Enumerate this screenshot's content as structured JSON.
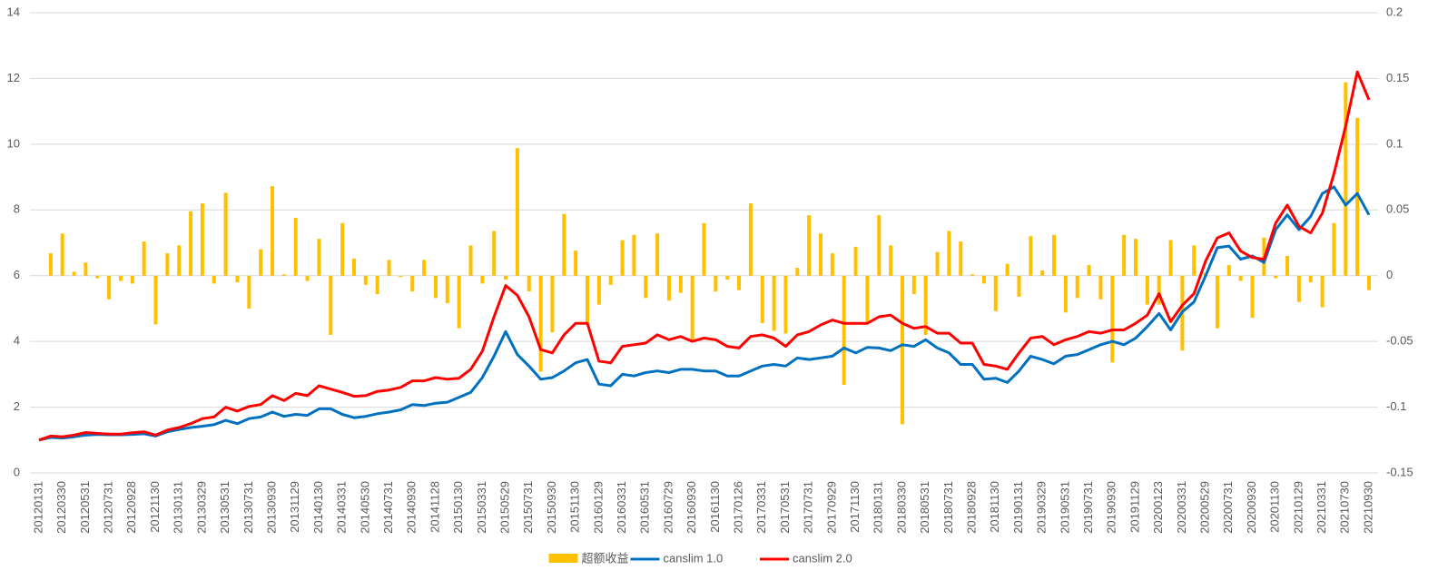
{
  "chart_data": {
    "type": "bar-line",
    "categories": [
      "20120131",
      null,
      "20120330",
      null,
      "20120531",
      null,
      "20120731",
      null,
      "20120928",
      null,
      "20121130",
      null,
      "20130131",
      null,
      "20130329",
      null,
      "20130531",
      null,
      "20130731",
      null,
      "20130930",
      null,
      "20131129",
      null,
      "20140130",
      null,
      "20140331",
      null,
      "20140530",
      null,
      "20140731",
      null,
      "20140930",
      null,
      "20141128",
      null,
      "20150130",
      null,
      "20150331",
      null,
      "20150529",
      null,
      "20150731",
      null,
      "20150930",
      null,
      "20151130",
      null,
      "20160129",
      null,
      "20160331",
      null,
      "20160531",
      null,
      "20160729",
      null,
      "20160930",
      null,
      "20161130",
      null,
      "20170126",
      null,
      "20170331",
      null,
      "20170531",
      null,
      "20170731",
      null,
      "20170929",
      null,
      "20171130",
      null,
      "20180131",
      null,
      "20180330",
      null,
      "20180531",
      null,
      "20180731",
      null,
      "20180928",
      null,
      "20181130",
      null,
      "20190131",
      null,
      "20190329",
      null,
      "20190531",
      null,
      "20190731",
      null,
      "20190930",
      null,
      "20191129",
      null,
      "20200123",
      null,
      "20200331",
      null,
      "20200529",
      null,
      "20200731",
      null,
      "20200930",
      null,
      "20201130",
      null,
      "20210129",
      null,
      "20210331",
      null,
      "20210730",
      null,
      "20210930"
    ],
    "series": [
      {
        "name": "超额收益",
        "kind": "bar",
        "axis": "y2",
        "color": "#ffc000",
        "values": [
          0,
          0.017,
          0.032,
          0.003,
          0.01,
          -0.002,
          -0.018,
          -0.004,
          -0.006,
          0.026,
          -0.037,
          0.017,
          0.023,
          0.049,
          0.055,
          -0.006,
          0.063,
          -0.005,
          -0.025,
          0.02,
          0.068,
          0.001,
          0.044,
          -0.004,
          0.028,
          -0.045,
          0.04,
          0.013,
          -0.007,
          -0.014,
          0.012,
          -0.001,
          -0.012,
          0.012,
          -0.017,
          -0.021,
          -0.04,
          0.023,
          -0.006,
          0.034,
          -0.003,
          0.097,
          -0.012,
          -0.073,
          -0.043,
          0.047,
          0.019,
          -0.036,
          -0.022,
          -0.007,
          0.027,
          0.031,
          -0.017,
          0.032,
          -0.019,
          -0.013,
          -0.05,
          0.04,
          -0.012,
          -0.003,
          -0.011,
          0.055,
          -0.036,
          -0.042,
          -0.044,
          0.006,
          0.046,
          0.032,
          0.017,
          -0.083,
          0.022,
          -0.035,
          0.046,
          0.023,
          -0.113,
          -0.014,
          -0.045,
          0.018,
          0.034,
          0.026,
          0.001,
          -0.006,
          -0.027,
          0.009,
          -0.016,
          0.03,
          0.004,
          0.031,
          -0.028,
          -0.017,
          0.008,
          -0.018,
          -0.066,
          0.031,
          0.028,
          -0.022,
          -0.022,
          0.027,
          -0.057,
          0.023,
          0.002,
          -0.04,
          0.008,
          -0.004,
          -0.032,
          0.029,
          -0.002,
          0.015,
          -0.02,
          -0.005,
          -0.024,
          0.04,
          0.147,
          0.12,
          -0.011
        ]
      },
      {
        "name": "canslim 1.0",
        "kind": "line",
        "color": "#0070c0",
        "values": [
          1.0,
          1.08,
          1.06,
          1.1,
          1.15,
          1.17,
          1.16,
          1.16,
          1.17,
          1.19,
          1.12,
          1.25,
          1.32,
          1.38,
          1.42,
          1.47,
          1.6,
          1.5,
          1.65,
          1.7,
          1.85,
          1.72,
          1.78,
          1.75,
          1.95,
          1.95,
          1.78,
          1.68,
          1.72,
          1.8,
          1.85,
          1.92,
          2.08,
          2.05,
          2.12,
          2.15,
          2.3,
          2.45,
          2.9,
          3.55,
          4.3,
          3.6,
          3.25,
          2.85,
          2.9,
          3.1,
          3.35,
          3.45,
          2.7,
          2.65,
          3.0,
          2.95,
          3.05,
          3.1,
          3.05,
          3.15,
          3.15,
          3.1,
          3.1,
          2.95,
          2.95,
          3.1,
          3.25,
          3.3,
          3.25,
          3.5,
          3.45,
          3.5,
          3.55,
          3.8,
          3.65,
          3.82,
          3.8,
          3.72,
          3.9,
          3.85,
          4.05,
          3.8,
          3.65,
          3.3,
          3.3,
          2.85,
          2.88,
          2.75,
          3.1,
          3.55,
          3.45,
          3.32,
          3.55,
          3.6,
          3.75,
          3.9,
          4.0,
          3.9,
          4.1,
          4.45,
          4.85,
          4.35,
          4.9,
          5.2,
          6.0,
          6.85,
          6.9,
          6.5,
          6.6,
          6.4,
          7.4,
          7.85,
          7.4,
          7.8,
          8.5,
          8.7,
          8.15,
          8.5,
          7.85
        ]
      },
      {
        "name": "canslim 2.0",
        "kind": "line",
        "color": "#ff0000",
        "values": [
          1.0,
          1.12,
          1.1,
          1.15,
          1.23,
          1.2,
          1.18,
          1.18,
          1.22,
          1.25,
          1.15,
          1.3,
          1.38,
          1.5,
          1.65,
          1.7,
          2.0,
          1.88,
          2.02,
          2.08,
          2.35,
          2.2,
          2.42,
          2.35,
          2.65,
          2.55,
          2.45,
          2.33,
          2.35,
          2.48,
          2.52,
          2.6,
          2.8,
          2.8,
          2.9,
          2.85,
          2.88,
          3.15,
          3.7,
          4.75,
          5.7,
          5.4,
          4.75,
          3.75,
          3.65,
          4.2,
          4.55,
          4.55,
          3.4,
          3.35,
          3.85,
          3.9,
          3.95,
          4.2,
          4.05,
          4.15,
          4.0,
          4.1,
          4.05,
          3.85,
          3.8,
          4.15,
          4.2,
          4.1,
          3.85,
          4.2,
          4.3,
          4.5,
          4.65,
          4.55,
          4.55,
          4.55,
          4.75,
          4.8,
          4.55,
          4.4,
          4.45,
          4.25,
          4.25,
          3.95,
          3.95,
          3.3,
          3.25,
          3.15,
          3.65,
          4.1,
          4.15,
          3.9,
          4.05,
          4.15,
          4.3,
          4.25,
          4.35,
          4.35,
          4.55,
          4.8,
          5.45,
          4.6,
          5.1,
          5.45,
          6.45,
          7.15,
          7.3,
          6.75,
          6.55,
          6.5,
          7.6,
          8.15,
          7.5,
          7.3,
          7.9,
          9.1,
          10.55,
          12.2,
          11.35
        ]
      }
    ],
    "ylim": [
      0,
      14
    ],
    "yticks": [
      0,
      2,
      4,
      6,
      8,
      10,
      12,
      14
    ],
    "y2lim": [
      -0.15,
      0.2
    ],
    "y2ticks": [
      -0.15,
      -0.1,
      -0.05,
      0,
      0.05,
      0.1,
      0.15,
      0.2
    ],
    "grid": true,
    "legend": "bottom"
  }
}
